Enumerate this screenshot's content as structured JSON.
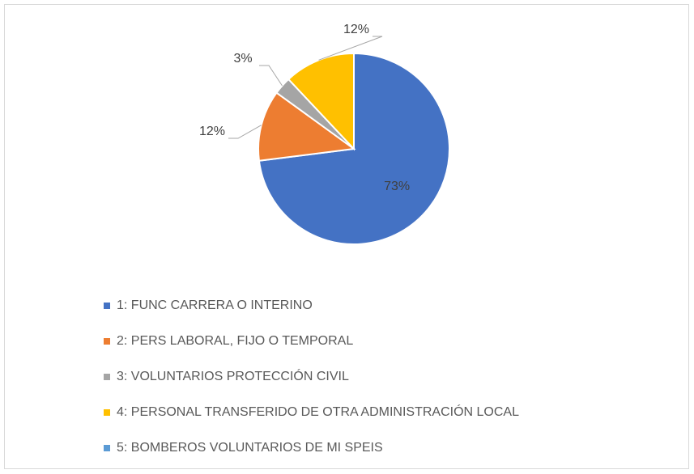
{
  "chart_data": {
    "type": "pie",
    "categories": [
      "1: FUNC CARRERA O INTERINO",
      "2: PERS LABORAL, FIJO O TEMPORAL",
      "3: VOLUNTARIOS PROTECCIÓN CIVIL",
      "4: PERSONAL TRANSFERIDO DE OTRA ADMINISTRACIÓN LOCAL",
      "5: BOMBEROS VOLUNTARIOS DE MI SPEIS"
    ],
    "values": [
      73,
      12,
      3,
      12,
      0
    ],
    "value_labels": [
      "73%",
      "12%",
      "3%",
      "12%",
      null
    ],
    "colors": [
      "#4472c4",
      "#ed7d31",
      "#a5a5a5",
      "#ffc000",
      "#5b9bd5"
    ],
    "legend": "bottom"
  }
}
